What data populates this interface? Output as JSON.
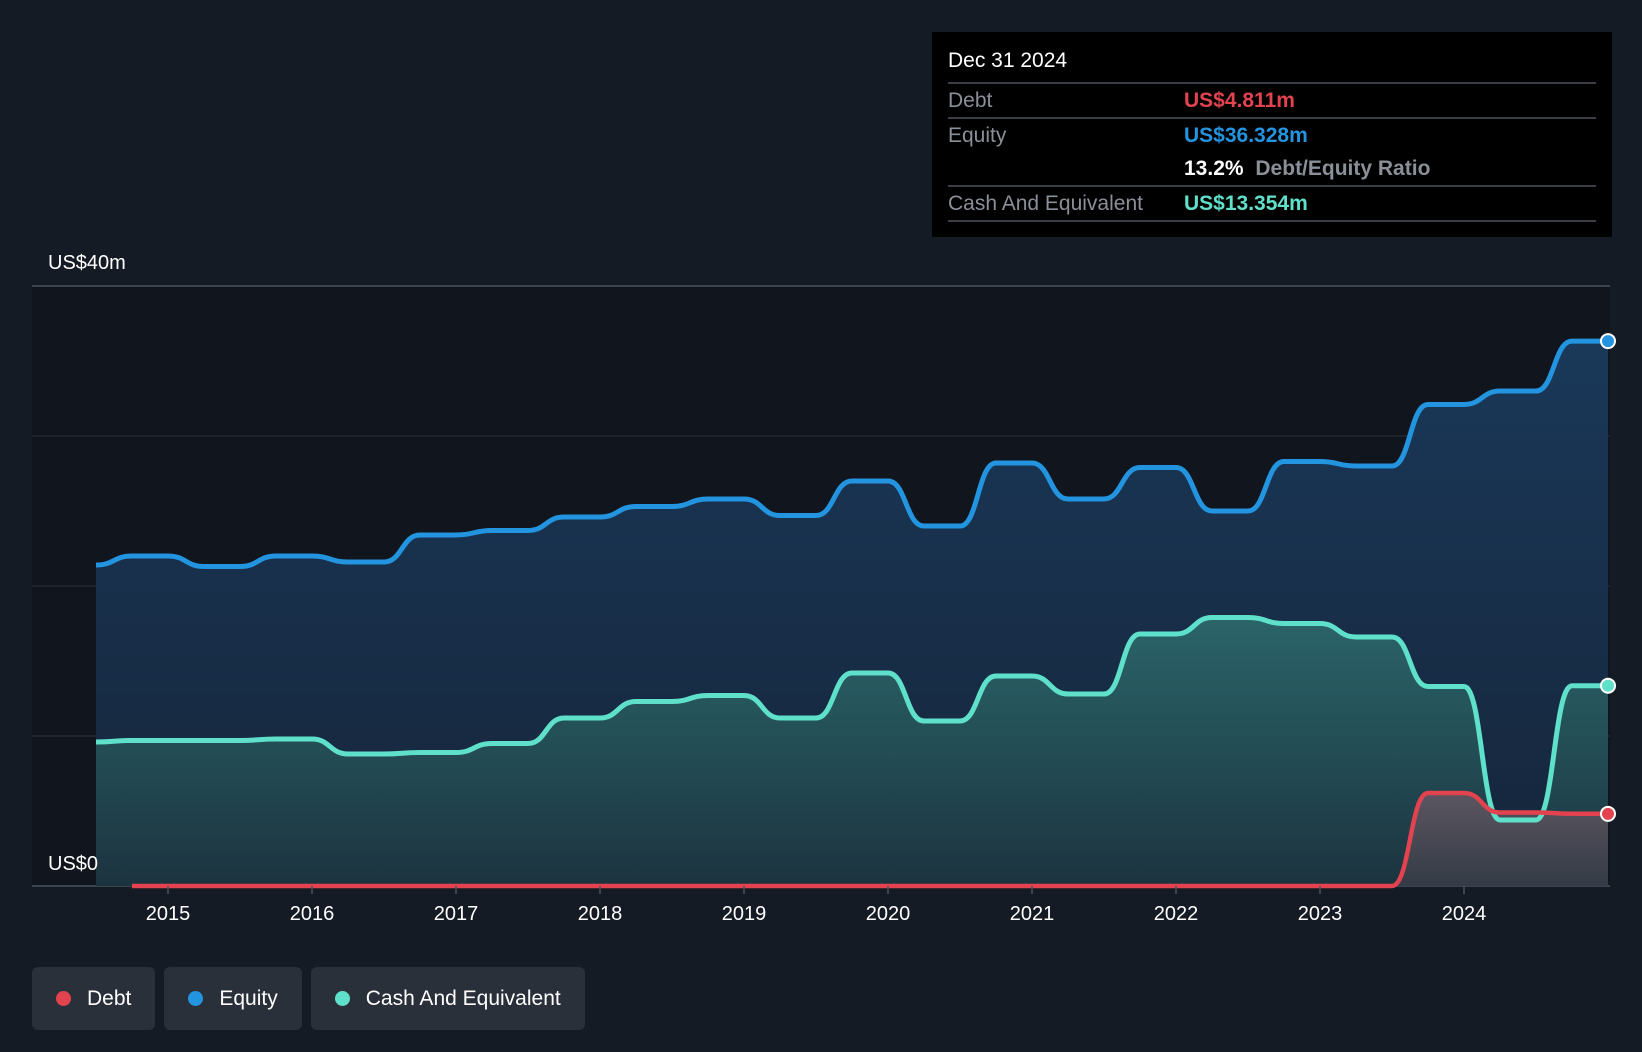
{
  "chart_data": {
    "type": "area",
    "ylim": [
      0,
      40
    ],
    "y_axis_labels": [
      "US$40m",
      "US$0"
    ],
    "x_tick_labels": [
      "2015",
      "2016",
      "2017",
      "2018",
      "2019",
      "2020",
      "2021",
      "2022",
      "2023",
      "2024"
    ],
    "series": [
      {
        "name": "Equity",
        "color": "#2394df",
        "x": [
          2014.5,
          2014.75,
          2015.0,
          2015.25,
          2015.5,
          2015.75,
          2016.0,
          2016.25,
          2016.5,
          2016.75,
          2017.0,
          2017.25,
          2017.5,
          2017.75,
          2018.0,
          2018.25,
          2018.5,
          2018.75,
          2019.0,
          2019.25,
          2019.5,
          2019.75,
          2020.0,
          2020.25,
          2020.5,
          2020.75,
          2021.0,
          2021.25,
          2021.5,
          2021.75,
          2022.0,
          2022.25,
          2022.5,
          2022.75,
          2023.0,
          2023.25,
          2023.5,
          2023.75,
          2024.0,
          2024.25,
          2024.5,
          2024.75,
          2025.0
        ],
        "values": [
          21.4,
          22.0,
          22.0,
          21.3,
          21.3,
          22.0,
          22.0,
          21.6,
          21.6,
          23.4,
          23.4,
          23.7,
          23.7,
          24.6,
          24.6,
          25.3,
          25.3,
          25.8,
          25.8,
          24.7,
          24.7,
          27.0,
          27.0,
          24.0,
          24.0,
          28.2,
          28.2,
          25.8,
          25.8,
          27.9,
          27.9,
          25.0,
          25.0,
          28.3,
          28.3,
          28.0,
          28.0,
          32.1,
          32.1,
          33.0,
          33.0,
          36.328,
          36.328
        ]
      },
      {
        "name": "Cash And Equivalent",
        "color": "#5fe0cb",
        "x": [
          2014.5,
          2014.75,
          2015.0,
          2015.25,
          2015.5,
          2015.75,
          2016.0,
          2016.25,
          2016.5,
          2016.75,
          2017.0,
          2017.25,
          2017.5,
          2017.75,
          2018.0,
          2018.25,
          2018.5,
          2018.75,
          2019.0,
          2019.25,
          2019.5,
          2019.75,
          2020.0,
          2020.25,
          2020.5,
          2020.75,
          2021.0,
          2021.25,
          2021.5,
          2021.75,
          2022.0,
          2022.25,
          2022.5,
          2022.75,
          2023.0,
          2023.25,
          2023.5,
          2023.75,
          2024.0,
          2024.25,
          2024.5,
          2024.75,
          2025.0
        ],
        "values": [
          9.6,
          9.7,
          9.7,
          9.7,
          9.7,
          9.8,
          9.8,
          8.8,
          8.8,
          8.9,
          8.9,
          9.5,
          9.5,
          11.2,
          11.2,
          12.3,
          12.3,
          12.7,
          12.7,
          11.2,
          11.2,
          14.2,
          14.2,
          11.0,
          11.0,
          14.0,
          14.0,
          12.8,
          12.8,
          16.8,
          16.8,
          17.9,
          17.9,
          17.5,
          17.5,
          16.6,
          16.6,
          13.3,
          13.3,
          4.4,
          4.4,
          13.354,
          13.354
        ]
      },
      {
        "name": "Debt",
        "color": "#e2434f",
        "x": [
          2014.75,
          2015.0,
          2016.0,
          2017.0,
          2018.0,
          2019.0,
          2020.0,
          2021.0,
          2022.0,
          2023.0,
          2023.5,
          2023.75,
          2024.0,
          2024.25,
          2024.5,
          2024.75,
          2025.0
        ],
        "values": [
          0,
          0,
          0,
          0,
          0,
          0,
          0,
          0,
          0,
          0,
          0,
          6.2,
          6.2,
          4.9,
          4.9,
          4.811,
          4.811
        ]
      }
    ],
    "tooltip": {
      "date": "Dec 31 2024",
      "rows": [
        {
          "label": "Debt",
          "value": "US$4.811m",
          "color": "#e2434f"
        },
        {
          "label": "Equity",
          "value": "US$36.328m",
          "color": "#2394df"
        },
        {
          "label": "",
          "value": "13.2%",
          "extra": "Debt/Equity Ratio",
          "color": "#ffffff"
        },
        {
          "label": "Cash And Equivalent",
          "value": "US$13.354m",
          "color": "#5fe0cb"
        }
      ]
    },
    "legend": [
      {
        "label": "Debt",
        "color": "#e2434f"
      },
      {
        "label": "Equity",
        "color": "#2394df"
      },
      {
        "label": "Cash And Equivalent",
        "color": "#5fe0cb"
      }
    ]
  }
}
